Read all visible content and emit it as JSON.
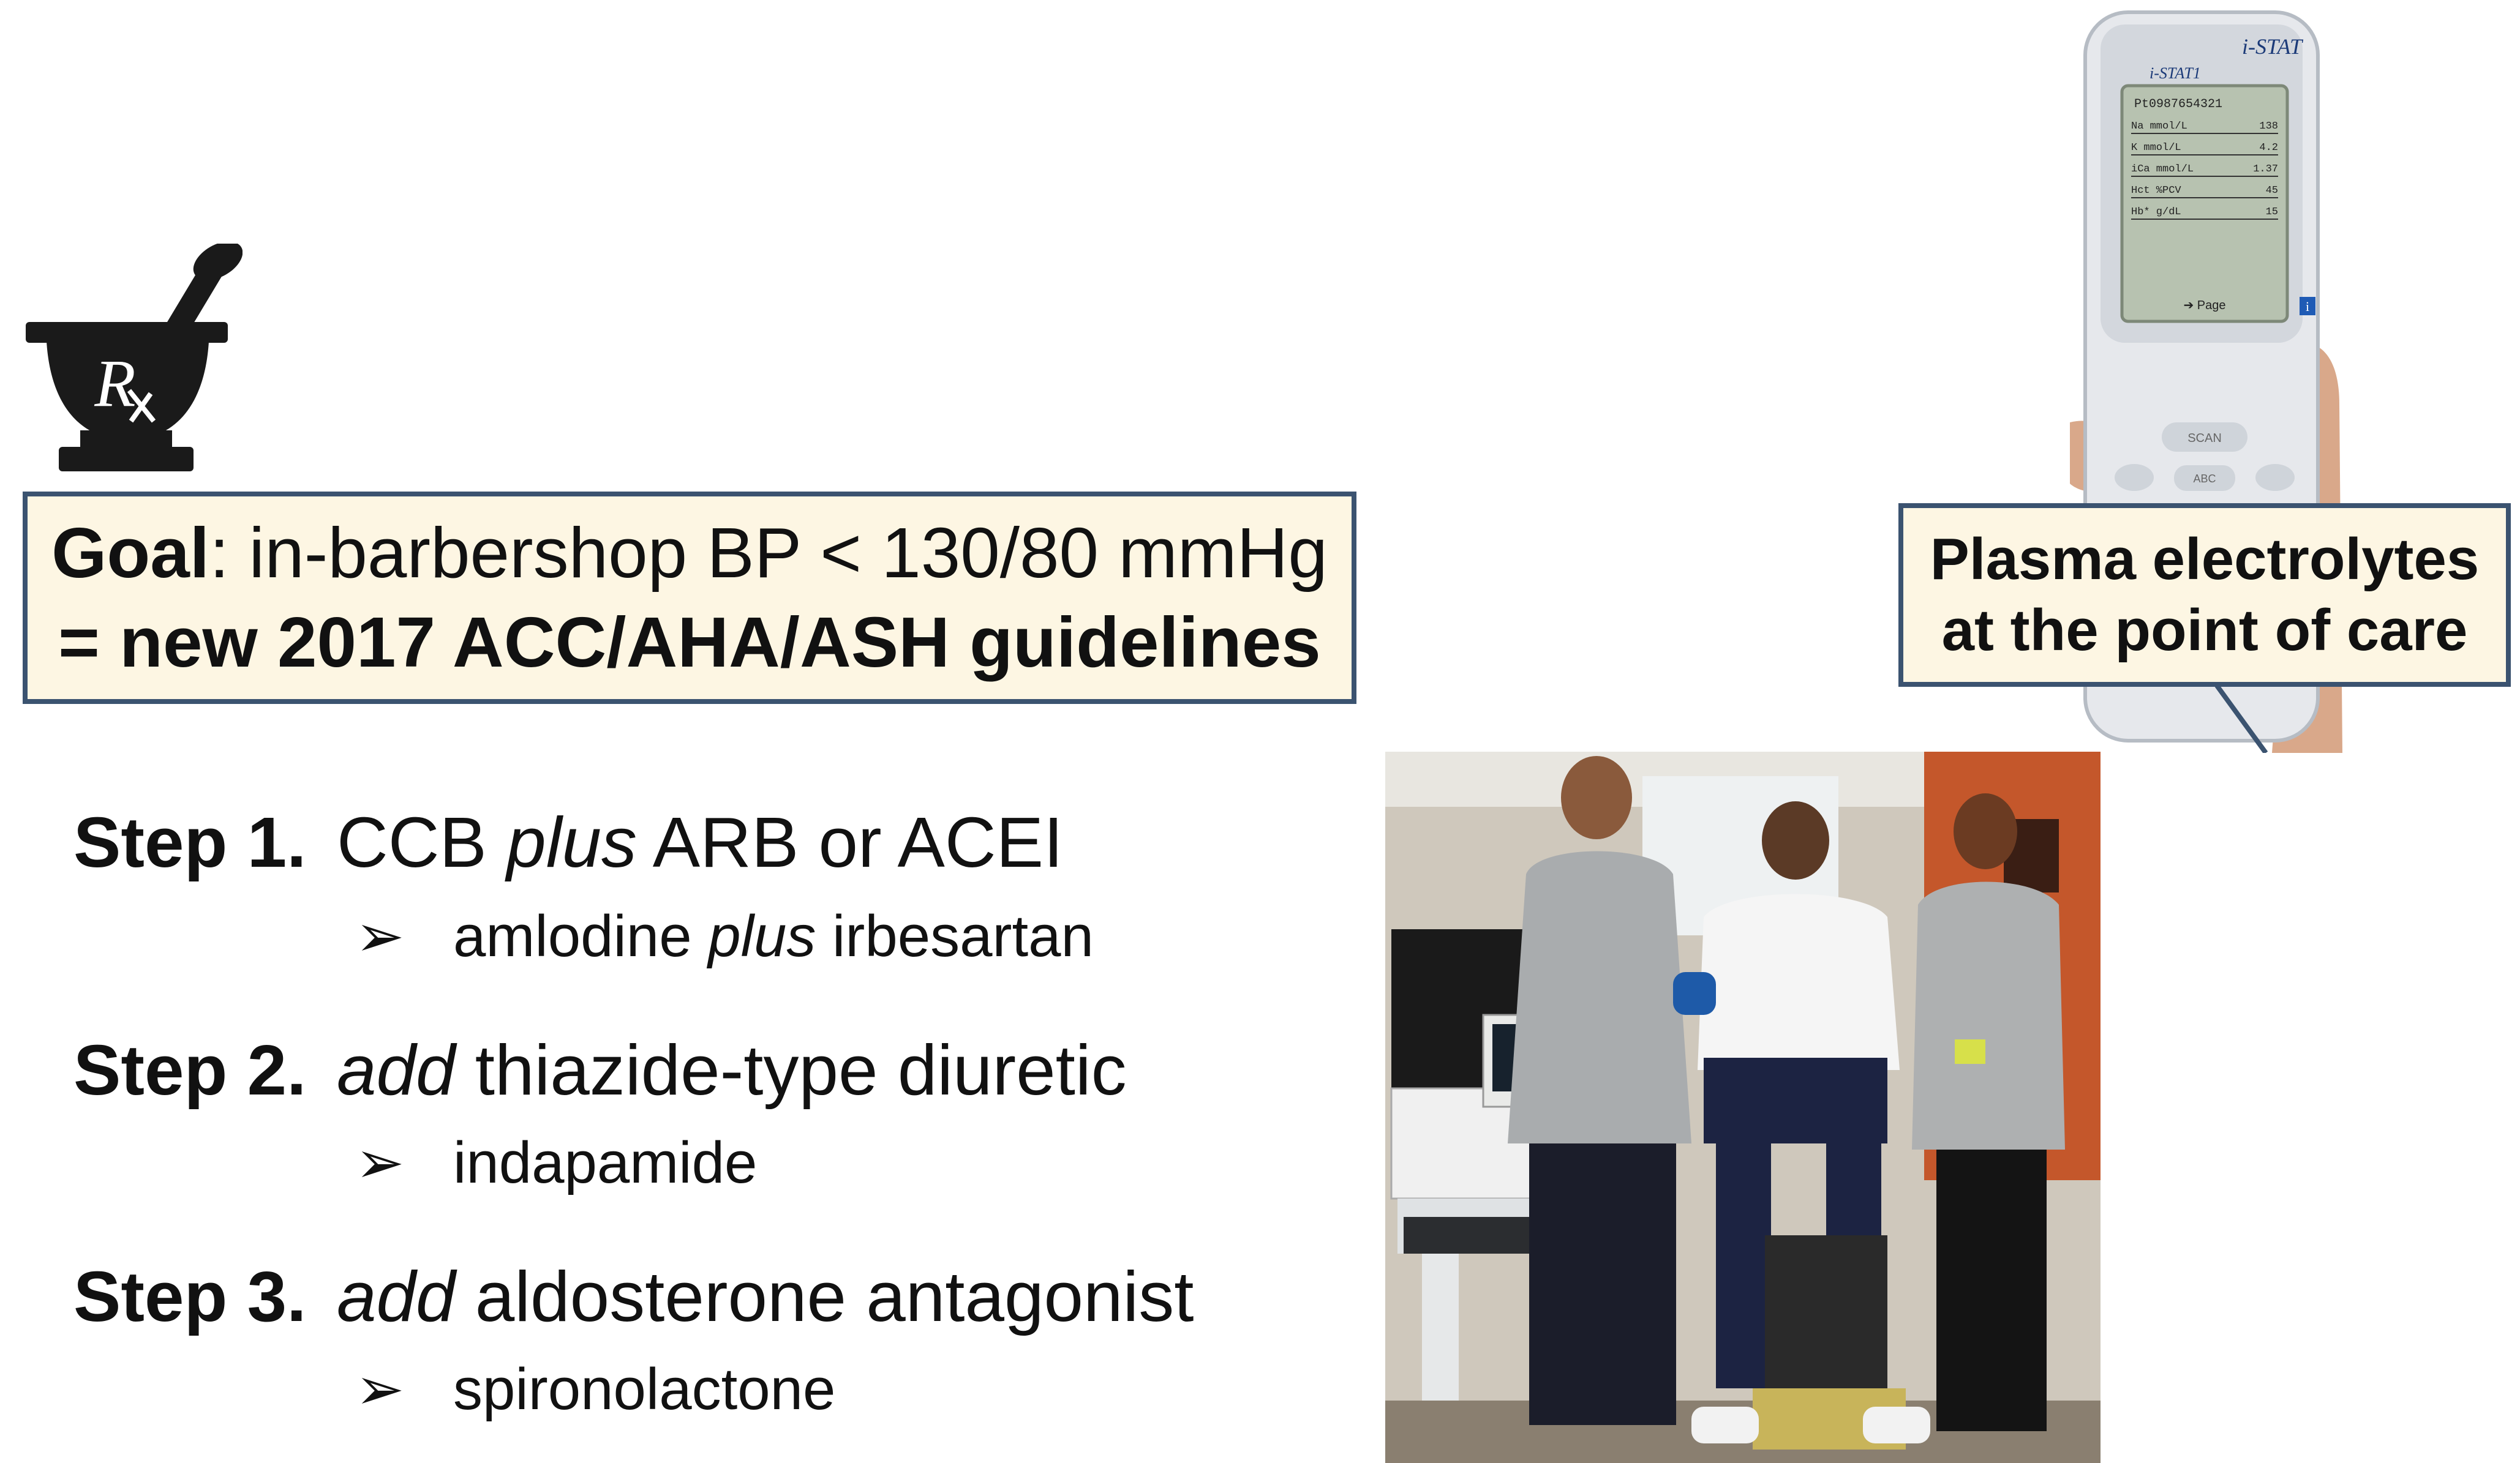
{
  "goal": {
    "label": "Goal",
    "text": ": in-barbershop BP < 130/80 mmHg",
    "line2": "= new 2017 ACC/AHA/ASH guidelines"
  },
  "steps": [
    {
      "label": "Step 1.",
      "parts": [
        "CCB ",
        "plus",
        " ARB or ACEI"
      ],
      "sub": [
        "amlodine ",
        "plus",
        " irbesartan"
      ]
    },
    {
      "label": "Step 2.",
      "parts": [
        "add",
        " thiazide-type diuretic"
      ],
      "sub": [
        "indapamide"
      ]
    },
    {
      "label": "Step 3.",
      "parts": [
        "add",
        " aldosterone antagonist"
      ],
      "sub": [
        "spironolactone"
      ]
    }
  ],
  "bullet": "➢",
  "callout": {
    "line1": "Plasma electrolytes",
    "line2": "at the point of care"
  },
  "device": {
    "brand": "i-STAT",
    "model": "i-STAT1",
    "patient_id": "Pt0987654321",
    "rows": [
      {
        "label": "Na mmol/L",
        "value": "138"
      },
      {
        "label": "K mmol/L",
        "value": "4.2"
      },
      {
        "label": "iCa mmol/L",
        "value": "1.37"
      },
      {
        "label": "Hct %PCV",
        "value": "45"
      },
      {
        "label": "Hb* g/dL",
        "value": "15"
      }
    ],
    "page_label": "➔ Page",
    "scan_label": "SCAN",
    "abc_label": "ABC",
    "info_label": "i"
  },
  "rx_symbol": "R"
}
